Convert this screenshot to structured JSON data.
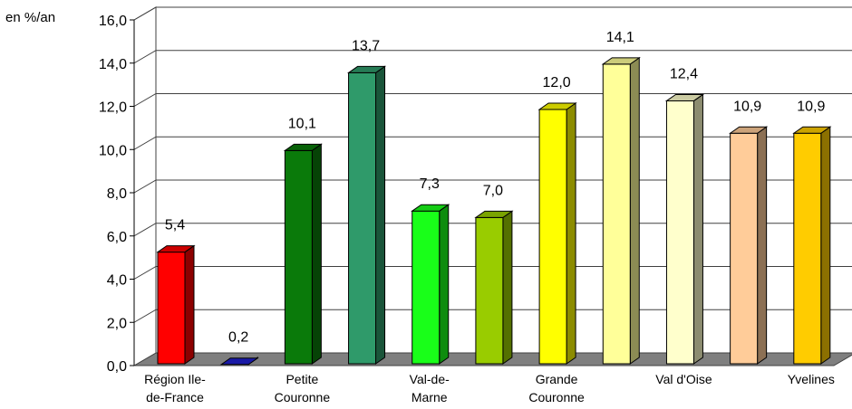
{
  "chart_data": {
    "type": "bar",
    "unit_label": "en %/an",
    "ylim": [
      0,
      16
    ],
    "yticks": [
      "0,0",
      "2,0",
      "4,0",
      "6,0",
      "8,0",
      "10,0",
      "12,0",
      "14,0",
      "16,0"
    ],
    "grid": true,
    "legend": "none",
    "categories": [
      "",
      "",
      "",
      "",
      "",
      "",
      "",
      "",
      "",
      "",
      ""
    ],
    "values": [
      5.4,
      0.2,
      10.1,
      13.7,
      7.3,
      7.0,
      12.0,
      14.1,
      12.4,
      10.9,
      10.9
    ],
    "value_labels": [
      "5,4",
      "0,2",
      "10,1",
      "13,7",
      "7,3",
      "7,0",
      "12,0",
      "14,1",
      "12,4",
      "10,9",
      "10,9"
    ],
    "colors": [
      "#ff0000",
      "#1f1fd0",
      "#0a7a0a",
      "#2f9a6a",
      "#19ff19",
      "#99cc00",
      "#ffff00",
      "#ffff99",
      "#ffffcc",
      "#ffcc99",
      "#ffcc00"
    ],
    "xtick_labels": [
      {
        "index": 0,
        "lines": [
          "Région Ile-",
          "de-France"
        ]
      },
      {
        "index": 2,
        "lines": [
          "Petite",
          "Couronne"
        ]
      },
      {
        "index": 4,
        "lines": [
          "Val-de-",
          "Marne"
        ]
      },
      {
        "index": 6,
        "lines": [
          "Grande",
          "Couronne"
        ]
      },
      {
        "index": 8,
        "lines": [
          "Val d'Oise"
        ]
      },
      {
        "index": 10,
        "lines": [
          "Yvelines"
        ]
      }
    ]
  }
}
